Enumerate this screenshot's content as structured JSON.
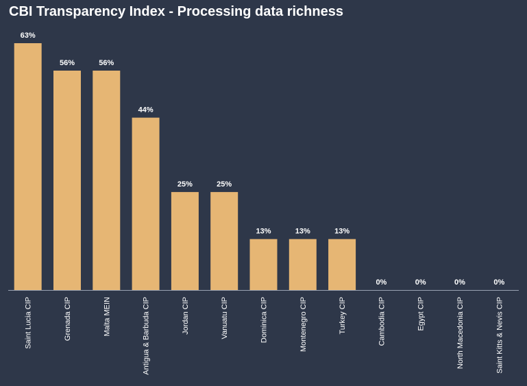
{
  "chart_data": {
    "type": "bar",
    "title": "CBI Transparency Index - Processing data richness",
    "xlabel": "",
    "ylabel": "",
    "ylim": [
      0,
      63
    ],
    "grid": false,
    "value_format": "percent",
    "categories": [
      "Saint Lucia CIP",
      "Grenada CIP",
      "Malta MEIN",
      "Antigua & Barbuda CIP",
      "Jordan CIP",
      "Vanuatu CIP",
      "Dominica CIP",
      "Montenegro CIP",
      "Turkey CIP",
      "Cambodia CIP",
      "Egypt CIP",
      "North Macedonia CIP",
      "Saint Kitts & Nevis CIP"
    ],
    "values": [
      63,
      56,
      56,
      44,
      25,
      25,
      13,
      13,
      13,
      0,
      0,
      0,
      0
    ],
    "data_labels": [
      "63%",
      "56%",
      "56%",
      "44%",
      "25%",
      "25%",
      "13%",
      "13%",
      "13%",
      "0%",
      "0%",
      "0%",
      "0%"
    ],
    "colors": {
      "background": "#2e3749",
      "bar": "#e6b674",
      "axis": "#9aa3b3",
      "text": "#ffffff"
    }
  }
}
